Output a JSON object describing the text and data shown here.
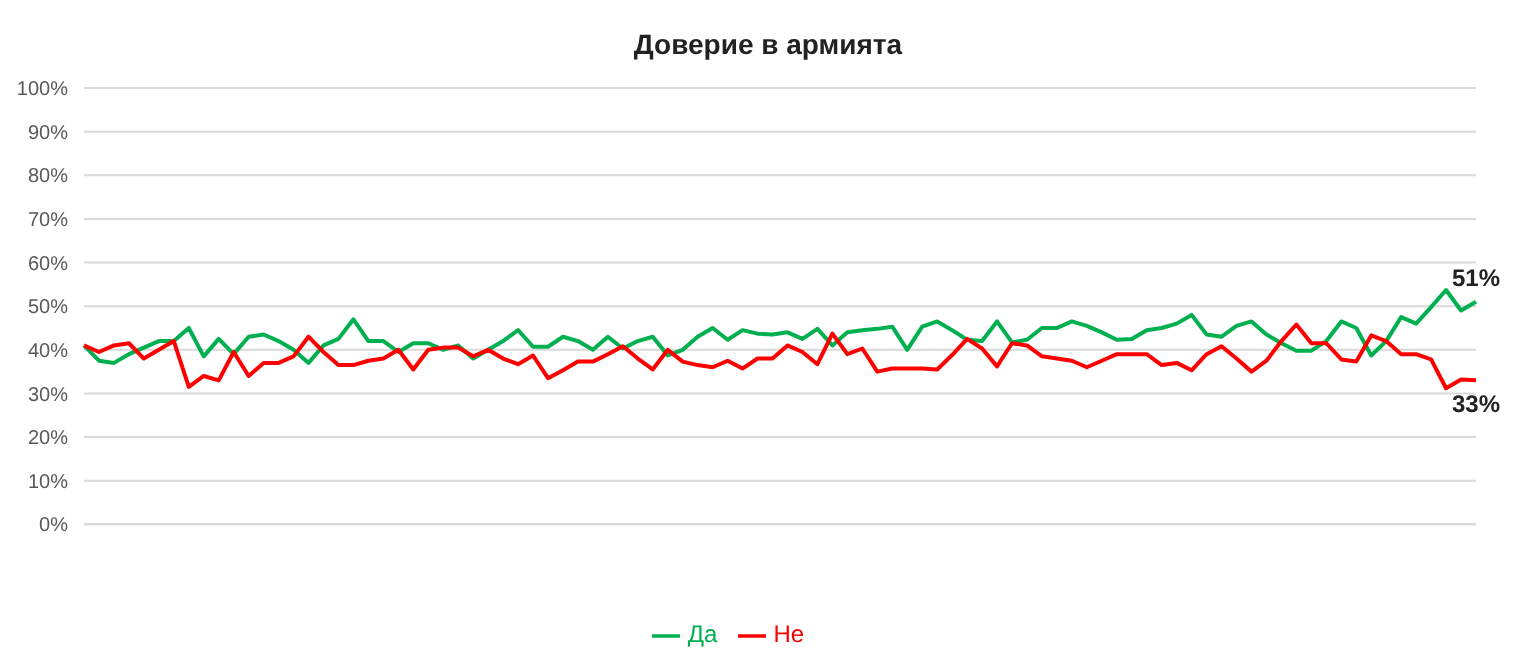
{
  "chart_data": {
    "type": "line",
    "title": "Доверие в армията",
    "categories": [
      null,
      null,
      null,
      null,
      null,
      null,
      null,
      null,
      null,
      null,
      null,
      null,
      null,
      null,
      null,
      null,
      null,
      null,
      null,
      null,
      null,
      null,
      null,
      null,
      null,
      null,
      null,
      null,
      null,
      null,
      null,
      null,
      null,
      null,
      null,
      null,
      null,
      null,
      null,
      null,
      null,
      null,
      null,
      null,
      null,
      null,
      null,
      null,
      null,
      null,
      null,
      null,
      null,
      null,
      null,
      null,
      null,
      null,
      null,
      null,
      null,
      null,
      null,
      null,
      null,
      null,
      null,
      null,
      null,
      null,
      null,
      null,
      null,
      null,
      null,
      null,
      null,
      null,
      null,
      null,
      null,
      null,
      null,
      null,
      null,
      null,
      null,
      null,
      null,
      null,
      null,
      null,
      null,
      null
    ],
    "series": [
      {
        "name": "Да",
        "color": "#00b050",
        "values": [
          41,
          37.5,
          37,
          39,
          40.5,
          42,
          42,
          45,
          38.5,
          42.5,
          39,
          43,
          43.5,
          42,
          40,
          37,
          41,
          42.5,
          47,
          42,
          42,
          39.5,
          41.5,
          41.5,
          40,
          41,
          38,
          40,
          42,
          44.5,
          40.7,
          40.7,
          43,
          42,
          40,
          43,
          40.3,
          42,
          43,
          38.7,
          40,
          43,
          45,
          42.3,
          44.5,
          43.7,
          43.5,
          44,
          42.5,
          44.8,
          41,
          44,
          44.5,
          44.8,
          45.3,
          40,
          45.3,
          46.5,
          44.5,
          42.3,
          42,
          46.5,
          41.7,
          42.3,
          45,
          45,
          46.5,
          45.5,
          44,
          42.3,
          42.5,
          44.5,
          45,
          46,
          48,
          43.5,
          43,
          45.5,
          46.5,
          43.5,
          41.5,
          39.8,
          39.8,
          42,
          46.5,
          45,
          38.7,
          42,
          47.5,
          46,
          49.8,
          53.7,
          49,
          51
        ],
        "value_labels": [
          null,
          null,
          null,
          null,
          null,
          null,
          null,
          null,
          null,
          null,
          null,
          null,
          null,
          null,
          null,
          null,
          null,
          null,
          null,
          null,
          null,
          null,
          null,
          null,
          null,
          null,
          null,
          null,
          null,
          null,
          null,
          null,
          null,
          null,
          null,
          null,
          null,
          null,
          null,
          null,
          null,
          null,
          null,
          null,
          null,
          null,
          null,
          null,
          null,
          null,
          null,
          null,
          null,
          null,
          null,
          null,
          null,
          null,
          null,
          null,
          null,
          null,
          null,
          null,
          null,
          null,
          null,
          null,
          null,
          null,
          null,
          null,
          null,
          null,
          null,
          null,
          null,
          null,
          null,
          null,
          null,
          null,
          null,
          null,
          null,
          null,
          null,
          null,
          null,
          null,
          null,
          null,
          null,
          "51%"
        ]
      },
      {
        "name": "Не",
        "color": "#ff0000",
        "values": [
          41,
          39.5,
          41,
          41.5,
          38,
          40,
          42,
          31.5,
          34,
          33,
          39.5,
          34,
          37,
          37,
          38.5,
          43,
          39.5,
          36.5,
          36.5,
          37.5,
          38,
          40,
          35.5,
          40,
          40.5,
          40.5,
          38.5,
          40,
          38,
          36.7,
          38.7,
          33.5,
          35.3,
          37.3,
          37.3,
          39,
          40.8,
          38,
          35.5,
          40,
          37.3,
          36.5,
          36,
          37.5,
          35.7,
          38,
          38,
          41,
          39.5,
          36.7,
          43.7,
          39,
          40.3,
          35,
          35.7,
          35.7,
          35.7,
          35.5,
          38.8,
          42.5,
          40.3,
          36.2,
          41.5,
          41,
          38.5,
          38,
          37.5,
          36,
          37.5,
          39,
          39,
          39,
          36.5,
          37,
          35.3,
          39,
          40.8,
          38,
          35,
          37.5,
          42,
          45.8,
          41.5,
          41.5,
          37.8,
          37.3,
          43.3,
          42,
          39,
          39,
          37.8,
          31.2,
          33.2,
          33
        ],
        "value_labels": [
          null,
          null,
          null,
          null,
          null,
          null,
          null,
          null,
          null,
          null,
          null,
          null,
          null,
          null,
          null,
          null,
          null,
          null,
          null,
          null,
          null,
          null,
          null,
          null,
          null,
          null,
          null,
          null,
          null,
          null,
          null,
          null,
          null,
          null,
          null,
          null,
          null,
          null,
          null,
          null,
          null,
          null,
          null,
          null,
          null,
          null,
          null,
          null,
          null,
          null,
          null,
          null,
          null,
          null,
          null,
          null,
          null,
          null,
          null,
          null,
          null,
          null,
          null,
          null,
          null,
          null,
          null,
          null,
          null,
          null,
          null,
          null,
          null,
          null,
          null,
          null,
          null,
          null,
          null,
          null,
          null,
          null,
          null,
          null,
          null,
          null,
          null,
          null,
          null,
          null,
          null,
          null,
          null,
          "33%"
        ]
      }
    ],
    "ylim": [
      0,
      100
    ],
    "yticks": [
      {
        "value": 0,
        "label": "0%"
      },
      {
        "value": 10,
        "label": "10%"
      },
      {
        "value": 20,
        "label": "20%"
      },
      {
        "value": 30,
        "label": "30%"
      },
      {
        "value": 40,
        "label": "40%"
      },
      {
        "value": 50,
        "label": "50%"
      },
      {
        "value": 60,
        "label": "60%"
      },
      {
        "value": 70,
        "label": "70%"
      },
      {
        "value": 80,
        "label": "80%"
      },
      {
        "value": 90,
        "label": "90%"
      },
      {
        "value": 100,
        "label": "100%"
      }
    ],
    "grid": "y",
    "legend": "bottom",
    "tick_labels": "y",
    "line_style": "solid"
  }
}
